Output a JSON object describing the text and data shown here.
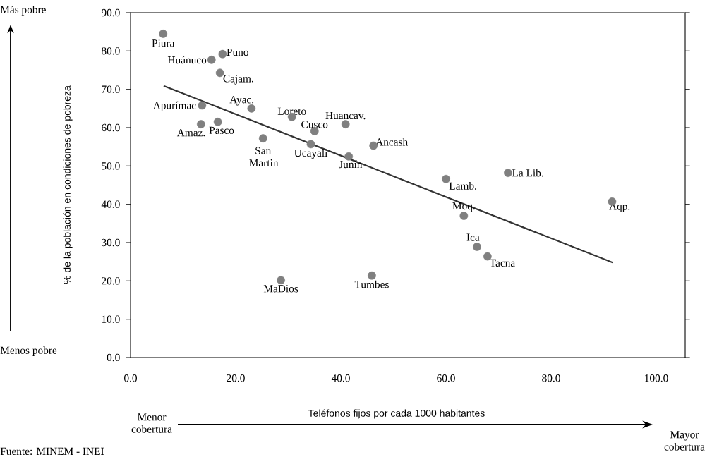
{
  "chart_data": {
    "type": "scatter",
    "xlabel": "Teléfonos fijos por cada 1000 habitantes",
    "ylabel": "% de la población en condiciones de pobreza",
    "xlim": [
      0,
      105.5
    ],
    "ylim": [
      0,
      90
    ],
    "xticks": [
      {
        "value": 0,
        "label": "0.0"
      },
      {
        "value": 20,
        "label": "20.0"
      },
      {
        "value": 40,
        "label": "40.0"
      },
      {
        "value": 60,
        "label": "60.0"
      },
      {
        "value": 80,
        "label": "80.0"
      },
      {
        "value": 100,
        "label": "100.0"
      }
    ],
    "yticks": [
      {
        "value": 0,
        "label": "0.0"
      },
      {
        "value": 10,
        "label": "10.0"
      },
      {
        "value": 20,
        "label": "20.0"
      },
      {
        "value": 30,
        "label": "30.0"
      },
      {
        "value": 40,
        "label": "40.0"
      },
      {
        "value": 50,
        "label": "50.0"
      },
      {
        "value": 60,
        "label": "60.0"
      },
      {
        "value": 70,
        "label": "70.0"
      },
      {
        "value": 80,
        "label": "80.0"
      },
      {
        "value": 90,
        "label": "90.0"
      }
    ],
    "series": [
      {
        "color": "#808080",
        "marker": "circle",
        "x": [
          6.2,
          15.4,
          17.5,
          17.0,
          13.6,
          13.4,
          16.6,
          23.0,
          25.2,
          30.7,
          35.0,
          34.3,
          40.9,
          41.5,
          46.2,
          28.6,
          45.9,
          60.0,
          71.8,
          91.6,
          63.4,
          65.9,
          67.9
        ],
        "values": [
          84.5,
          77.7,
          79.2,
          74.3,
          65.8,
          60.9,
          61.5,
          65.0,
          57.2,
          62.8,
          59.1,
          55.7,
          60.9,
          52.5,
          55.3,
          20.2,
          21.4,
          46.6,
          48.2,
          40.7,
          37.0,
          28.9,
          26.4
        ]
      },
      {
        "type": "line",
        "color": "#333333",
        "marker": "none",
        "line_style": "solid",
        "x": [
          6.3,
          91.7
        ],
        "values": [
          70.9,
          24.8
        ]
      }
    ],
    "annotations": [
      {
        "text": "Piura",
        "x": 6.2,
        "y": 84.5
      },
      {
        "text": "Huánuco",
        "x": 15.4,
        "y": 77.7
      },
      {
        "text": "Puno",
        "x": 17.5,
        "y": 79.2
      },
      {
        "text": "Cajam.",
        "x": 17.0,
        "y": 74.3
      },
      {
        "text": "Apurímac",
        "x": 13.6,
        "y": 65.8
      },
      {
        "text": "Amaz.",
        "x": 13.4,
        "y": 60.9
      },
      {
        "text": "Pasco",
        "x": 16.6,
        "y": 61.5
      },
      {
        "text": "Ayac.",
        "x": 23.0,
        "y": 65.0
      },
      {
        "text": "San Martin",
        "x": 25.2,
        "y": 57.2
      },
      {
        "text": "Loreto",
        "x": 30.7,
        "y": 62.8
      },
      {
        "text": "Cusco",
        "x": 35.0,
        "y": 59.1
      },
      {
        "text": "Ucayali",
        "x": 34.3,
        "y": 55.7
      },
      {
        "text": "Huancav.",
        "x": 40.9,
        "y": 60.9
      },
      {
        "text": "Junín",
        "x": 41.5,
        "y": 52.5
      },
      {
        "text": "Ancash",
        "x": 46.2,
        "y": 55.3
      },
      {
        "text": "MaDios",
        "x": 28.6,
        "y": 20.2
      },
      {
        "text": "Tumbes",
        "x": 45.9,
        "y": 21.4
      },
      {
        "text": "Lamb.",
        "x": 60.0,
        "y": 46.6
      },
      {
        "text": "La Lib.",
        "x": 71.8,
        "y": 48.2
      },
      {
        "text": "Aqp.",
        "x": 91.6,
        "y": 40.7
      },
      {
        "text": "Moq.",
        "x": 63.4,
        "y": 37.0
      },
      {
        "text": "Ica",
        "x": 65.9,
        "y": 28.9
      },
      {
        "text": "Tacna",
        "x": 67.9,
        "y": 26.4
      },
      "Más pobre",
      "Menos pobre",
      "Menor cobertura",
      "Mayor cobertura",
      "Fuente: MINEM - INEI"
    ]
  }
}
